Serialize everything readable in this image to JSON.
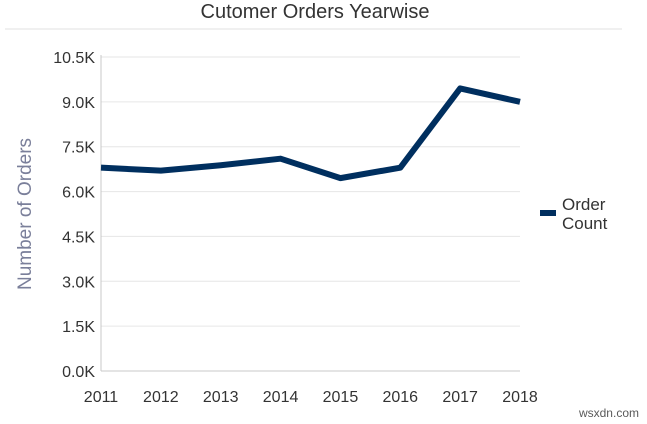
{
  "chart_data": {
    "type": "line",
    "title": "Cutomer Orders Yearwise",
    "xlabel": "",
    "ylabel": "Number of Orders",
    "categories": [
      "2011",
      "2012",
      "2013",
      "2014",
      "2015",
      "2016",
      "2017",
      "2018"
    ],
    "series": [
      {
        "name": "Order Count",
        "values": [
          6800,
          6700,
          6880,
          7100,
          6450,
          6800,
          9450,
          9000
        ]
      }
    ],
    "ylim": [
      0,
      10500
    ],
    "yticks": [
      0,
      1500,
      3000,
      4500,
      6000,
      7500,
      9000,
      10500
    ],
    "ytick_labels": [
      "0.0K",
      "1.5K",
      "3.0K",
      "4.5K",
      "6.0K",
      "7.5K",
      "9.0K",
      "10.5K"
    ],
    "legend": {
      "position": "right",
      "labels": [
        "Order",
        "Count"
      ]
    },
    "grid": true,
    "colors": {
      "series": "#002f5f",
      "grid": "#e6e6e6",
      "axis": "#c8c8c8"
    }
  },
  "watermark": "wsxdn.com"
}
